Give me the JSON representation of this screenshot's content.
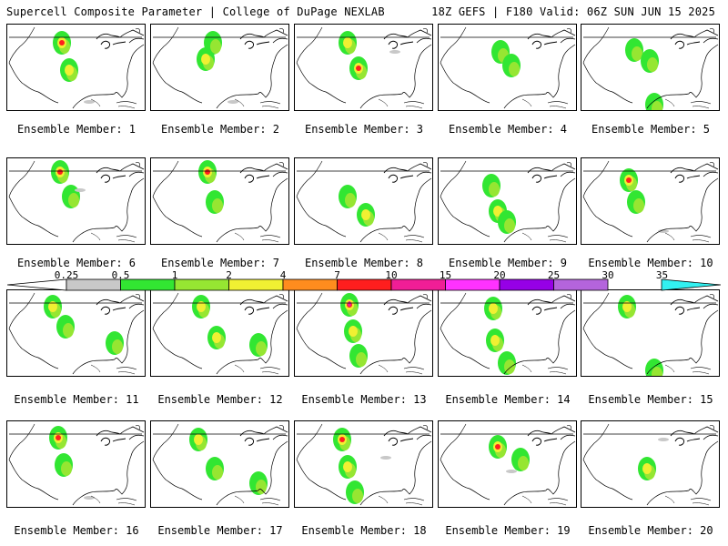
{
  "header": {
    "title": "Supercell Composite Parameter | College of DuPage NEXLAB",
    "run_info": "18Z GEFS | F180 Valid: 06Z SUN JUN 15 2025"
  },
  "members": [
    {
      "label": "Ensemble Member: 1"
    },
    {
      "label": "Ensemble Member: 2"
    },
    {
      "label": "Ensemble Member: 3"
    },
    {
      "label": "Ensemble Member: 4"
    },
    {
      "label": "Ensemble Member: 5"
    },
    {
      "label": "Ensemble Member: 6"
    },
    {
      "label": "Ensemble Member: 7"
    },
    {
      "label": "Ensemble Member: 8"
    },
    {
      "label": "Ensemble Member: 9"
    },
    {
      "label": "Ensemble Member: 10"
    },
    {
      "label": "Ensemble Member: 11"
    },
    {
      "label": "Ensemble Member: 12"
    },
    {
      "label": "Ensemble Member: 13"
    },
    {
      "label": "Ensemble Member: 14"
    },
    {
      "label": "Ensemble Member: 15"
    },
    {
      "label": "Ensemble Member: 16"
    },
    {
      "label": "Ensemble Member: 17"
    },
    {
      "label": "Ensemble Member: 18"
    },
    {
      "label": "Ensemble Member: 19"
    },
    {
      "label": "Ensemble Member: 20"
    }
  ],
  "colorbar": {
    "labels": [
      "0.25",
      "0.5",
      "1",
      "2",
      "4",
      "7",
      "10",
      "15",
      "20",
      "25",
      "30",
      "35"
    ],
    "colors": [
      "#ffffff",
      "#c8c8c8",
      "#32e632",
      "#96e632",
      "#f0f032",
      "#ff8c1e",
      "#ff1e1e",
      "#f01e96",
      "#ff32ff",
      "#9600e6",
      "#b464dc",
      "#32f0f0"
    ]
  }
}
